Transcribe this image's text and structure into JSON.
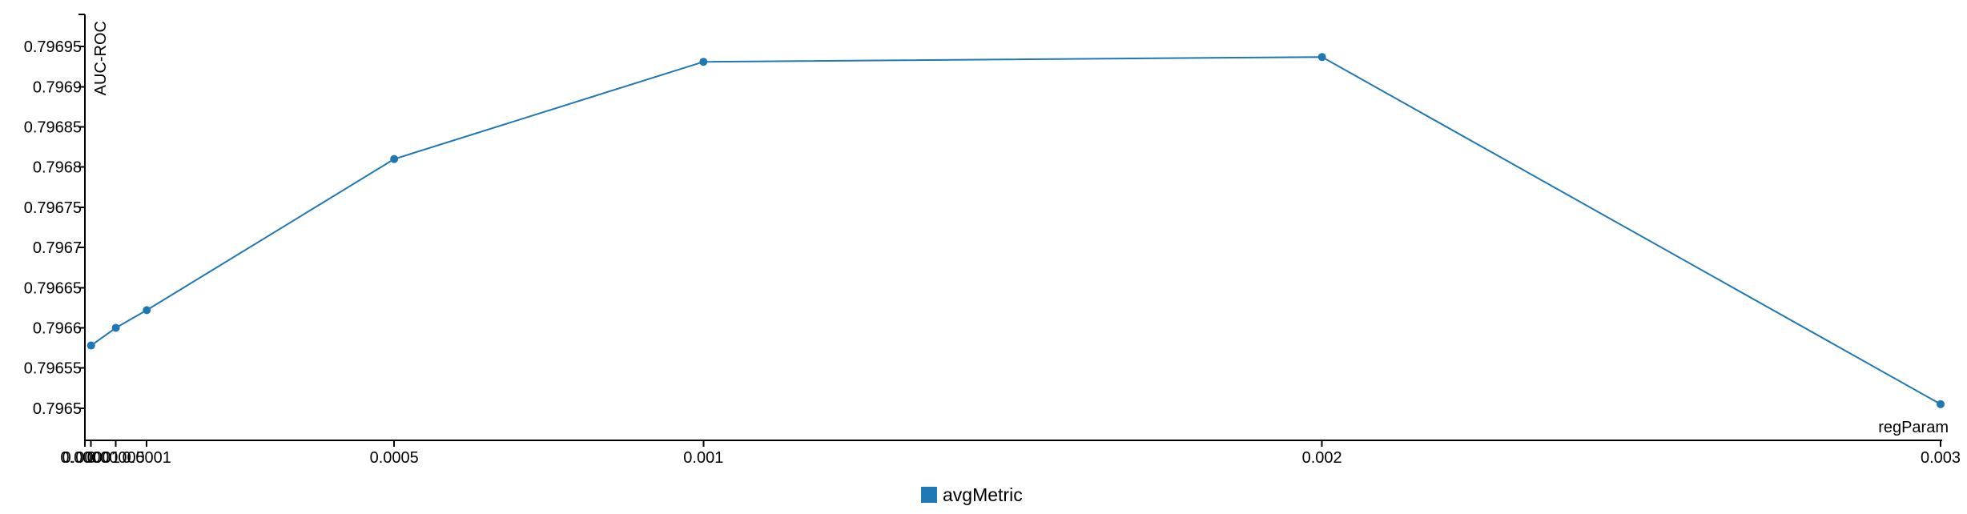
{
  "chart_data": {
    "type": "line",
    "title": "",
    "xlabel": "regParam",
    "ylabel": "AUC-ROC",
    "x": [
      1e-05,
      5e-05,
      0.0001,
      0.0005,
      0.001,
      0.002,
      0.003
    ],
    "series": [
      {
        "name": "avgMetric",
        "color": "#1f77b4",
        "values": [
          0.796578,
          0.7966,
          0.796622,
          0.79681,
          0.796931,
          0.796937,
          0.796505
        ]
      }
    ],
    "xlim": [
      0,
      0.003
    ],
    "ylim": [
      0.79646,
      0.79699
    ],
    "x_ticks": [
      0,
      1e-05,
      5e-05,
      0.0001,
      0.0005,
      0.001,
      0.002,
      0.003
    ],
    "x_tick_labels": [
      "0.0000",
      "0.00001",
      "0.00005",
      "0.0001",
      "0.0005",
      "0.001",
      "0.002",
      "0.003"
    ],
    "y_ticks": [
      0.7965,
      0.79655,
      0.7966,
      0.79665,
      0.7967,
      0.79675,
      0.7968,
      0.79685,
      0.7969,
      0.79695
    ],
    "y_tick_labels": [
      "0.7965",
      "0.79655",
      "0.7966",
      "0.79665",
      "0.7967",
      "0.79675",
      "0.7968",
      "0.79685",
      "0.7969",
      "0.79695"
    ],
    "grid": false,
    "legend": "bottom-center"
  }
}
